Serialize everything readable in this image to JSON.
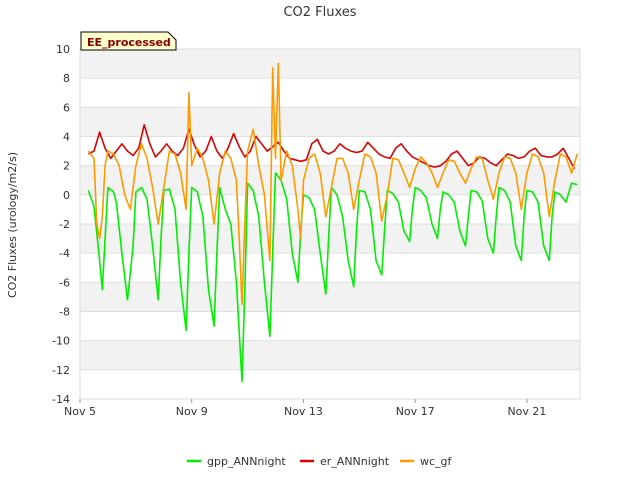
{
  "chart_data": {
    "type": "line",
    "title": "CO2 Fluxes",
    "badge": "EE_processed",
    "ylabel": "CO2 Fluxes (urology/m2/s)",
    "xlabel": "",
    "x_unit": "day of November",
    "xlim": [
      5,
      22.9
    ],
    "ylim": [
      -14,
      10
    ],
    "yticks": [
      10,
      8,
      6,
      4,
      2,
      0,
      -2,
      -4,
      -6,
      -8,
      -10,
      -12,
      -14
    ],
    "xticks": [
      {
        "value": 5,
        "label": "Nov 5"
      },
      {
        "value": 9,
        "label": "Nov 9"
      },
      {
        "value": 13,
        "label": "Nov 13"
      },
      {
        "value": 17,
        "label": "Nov 17"
      },
      {
        "value": 21,
        "label": "Nov 21"
      }
    ],
    "grid": "horizontal bands",
    "legend_position": "bottom",
    "series": [
      {
        "name": "gpp_ANNnight",
        "color": "#00ee00",
        "x": [
          5.3,
          5.5,
          5.7,
          5.8,
          5.9,
          6.0,
          6.2,
          6.3,
          6.5,
          6.7,
          6.9,
          7.0,
          7.2,
          7.4,
          7.6,
          7.8,
          7.9,
          8.0,
          8.2,
          8.4,
          8.6,
          8.8,
          8.9,
          9.0,
          9.2,
          9.4,
          9.6,
          9.8,
          9.9,
          10.0,
          10.2,
          10.4,
          10.6,
          10.8,
          10.9,
          11.0,
          11.2,
          11.4,
          11.6,
          11.8,
          11.9,
          12.0,
          12.2,
          12.4,
          12.6,
          12.8,
          12.9,
          13.0,
          13.2,
          13.4,
          13.6,
          13.8,
          13.9,
          14.0,
          14.2,
          14.4,
          14.6,
          14.8,
          14.9,
          15.0,
          15.2,
          15.4,
          15.6,
          15.8,
          15.9,
          16.0,
          16.2,
          16.4,
          16.6,
          16.8,
          16.9,
          17.0,
          17.2,
          17.4,
          17.6,
          17.8,
          17.9,
          18.0,
          18.2,
          18.4,
          18.6,
          18.8,
          18.9,
          19.0,
          19.2,
          19.4,
          19.6,
          19.8,
          19.9,
          20.0,
          20.2,
          20.4,
          20.6,
          20.8,
          20.9,
          21.0,
          21.2,
          21.4,
          21.6,
          21.8,
          21.9,
          22.0,
          22.2,
          22.4,
          22.6,
          22.8
        ],
        "y": [
          0.3,
          -0.8,
          -4.5,
          -6.5,
          -3.0,
          0.5,
          0.2,
          -0.5,
          -4.0,
          -7.2,
          -3.5,
          0.2,
          0.5,
          -0.3,
          -3.5,
          -7.2,
          -3.0,
          0.3,
          0.4,
          -1.0,
          -6.0,
          -9.3,
          -4.0,
          0.5,
          0.2,
          -1.5,
          -6.5,
          -9.0,
          -4.0,
          0.5,
          -1.0,
          -2.0,
          -6.0,
          -12.8,
          -6.5,
          0.8,
          0.3,
          -1.5,
          -6.0,
          -9.7,
          -4.0,
          1.5,
          1.0,
          -0.3,
          -4.0,
          -6.0,
          -2.5,
          0.0,
          -0.2,
          -1.0,
          -4.0,
          -6.8,
          -3.0,
          0.5,
          0.0,
          -1.5,
          -4.5,
          -6.3,
          -2.5,
          0.3,
          0.2,
          -1.0,
          -4.5,
          -5.5,
          -2.5,
          0.3,
          0.1,
          -0.5,
          -2.5,
          -3.2,
          -1.0,
          0.5,
          0.3,
          -0.2,
          -2.0,
          -3.0,
          -1.0,
          0.2,
          0.0,
          -0.5,
          -2.5,
          -3.5,
          -1.5,
          0.3,
          0.2,
          -0.4,
          -3.0,
          -4.0,
          -1.5,
          0.5,
          0.3,
          -0.5,
          -3.5,
          -4.5,
          -1.5,
          0.3,
          0.2,
          -0.5,
          -3.5,
          -4.5,
          -1.5,
          0.2,
          0.0,
          -0.5,
          0.8,
          0.7
        ]
      },
      {
        "name": "er_ANNnight",
        "color": "#dd0000",
        "x": [
          5.3,
          5.5,
          5.7,
          5.9,
          6.1,
          6.3,
          6.5,
          6.7,
          6.9,
          7.1,
          7.3,
          7.5,
          7.7,
          7.9,
          8.1,
          8.3,
          8.5,
          8.7,
          8.9,
          9.1,
          9.3,
          9.5,
          9.7,
          9.9,
          10.1,
          10.3,
          10.5,
          10.7,
          10.9,
          11.1,
          11.3,
          11.5,
          11.7,
          11.9,
          12.1,
          12.3,
          12.5,
          12.7,
          12.9,
          13.1,
          13.3,
          13.5,
          13.7,
          13.9,
          14.1,
          14.3,
          14.5,
          14.7,
          14.9,
          15.1,
          15.3,
          15.5,
          15.7,
          15.9,
          16.1,
          16.3,
          16.5,
          16.7,
          16.9,
          17.1,
          17.3,
          17.5,
          17.7,
          17.9,
          18.1,
          18.3,
          18.5,
          18.7,
          18.9,
          19.1,
          19.3,
          19.5,
          19.7,
          19.9,
          20.1,
          20.3,
          20.5,
          20.7,
          20.9,
          21.1,
          21.3,
          21.5,
          21.7,
          21.9,
          22.1,
          22.3,
          22.5,
          22.7
        ],
        "y": [
          2.8,
          3.0,
          4.3,
          3.2,
          2.5,
          3.0,
          3.5,
          3.0,
          2.7,
          3.2,
          4.8,
          3.5,
          2.6,
          3.0,
          3.5,
          3.0,
          2.7,
          3.2,
          4.5,
          3.4,
          2.6,
          3.0,
          4.0,
          3.0,
          2.5,
          3.2,
          4.2,
          3.3,
          2.6,
          3.0,
          4.0,
          3.5,
          3.0,
          3.3,
          3.6,
          3.0,
          2.5,
          2.4,
          2.3,
          2.4,
          3.5,
          3.8,
          3.0,
          2.8,
          3.0,
          3.5,
          3.2,
          3.0,
          2.9,
          3.0,
          3.6,
          3.2,
          2.8,
          2.6,
          2.5,
          3.2,
          3.5,
          3.0,
          2.6,
          2.4,
          2.2,
          2.0,
          1.9,
          2.0,
          2.3,
          2.8,
          3.0,
          2.5,
          2.0,
          2.2,
          2.6,
          2.5,
          2.2,
          2.0,
          2.4,
          2.8,
          2.7,
          2.5,
          2.6,
          3.0,
          3.2,
          2.7,
          2.6,
          2.6,
          2.8,
          3.2,
          2.5,
          1.8
        ]
      },
      {
        "name": "wc_gf",
        "color": "#ff9900",
        "x": [
          5.3,
          5.5,
          5.6,
          5.7,
          5.8,
          5.9,
          6.0,
          6.2,
          6.4,
          6.6,
          6.8,
          7.0,
          7.2,
          7.4,
          7.6,
          7.8,
          8.0,
          8.2,
          8.4,
          8.6,
          8.8,
          8.9,
          9.0,
          9.2,
          9.4,
          9.6,
          9.8,
          10.0,
          10.2,
          10.4,
          10.6,
          10.7,
          10.8,
          10.9,
          11.0,
          11.2,
          11.4,
          11.6,
          11.8,
          11.9,
          12.0,
          12.1,
          12.2,
          12.4,
          12.6,
          12.8,
          12.9,
          13.0,
          13.2,
          13.4,
          13.6,
          13.8,
          14.0,
          14.2,
          14.4,
          14.6,
          14.8,
          15.0,
          15.2,
          15.4,
          15.6,
          15.8,
          16.0,
          16.2,
          16.4,
          16.6,
          16.8,
          17.0,
          17.2,
          17.4,
          17.6,
          17.8,
          18.0,
          18.2,
          18.4,
          18.6,
          18.8,
          19.0,
          19.2,
          19.4,
          19.6,
          19.8,
          20.0,
          20.2,
          20.4,
          20.6,
          20.8,
          21.0,
          21.2,
          21.4,
          21.6,
          21.8,
          22.0,
          22.2,
          22.4,
          22.6,
          22.8
        ],
        "y": [
          3.0,
          2.5,
          -2.0,
          -3.0,
          -1.5,
          2.0,
          3.0,
          2.8,
          2.0,
          0.0,
          -1.0,
          2.0,
          3.5,
          2.5,
          0.5,
          -2.0,
          0.5,
          3.0,
          2.8,
          1.5,
          -1.0,
          7.0,
          2.0,
          3.2,
          2.5,
          1.0,
          -2.0,
          1.5,
          3.0,
          2.5,
          1.0,
          -3.0,
          -7.5,
          -2.0,
          3.0,
          4.5,
          2.0,
          0.0,
          -4.5,
          8.7,
          2.5,
          9.0,
          1.0,
          3.0,
          2.0,
          -1.0,
          -3.0,
          1.0,
          2.5,
          2.8,
          1.5,
          -1.5,
          0.5,
          2.5,
          2.5,
          1.5,
          -1.0,
          1.0,
          2.8,
          2.6,
          1.5,
          -1.8,
          0.0,
          2.5,
          2.4,
          1.5,
          0.5,
          1.8,
          2.6,
          2.2,
          1.5,
          0.5,
          1.5,
          2.4,
          2.3,
          1.5,
          0.8,
          1.8,
          2.6,
          2.5,
          1.0,
          -0.3,
          1.5,
          2.6,
          2.5,
          1.5,
          -1.0,
          1.5,
          2.8,
          2.6,
          1.5,
          -1.5,
          1.0,
          2.8,
          2.6,
          1.5,
          2.8
        ]
      }
    ]
  }
}
